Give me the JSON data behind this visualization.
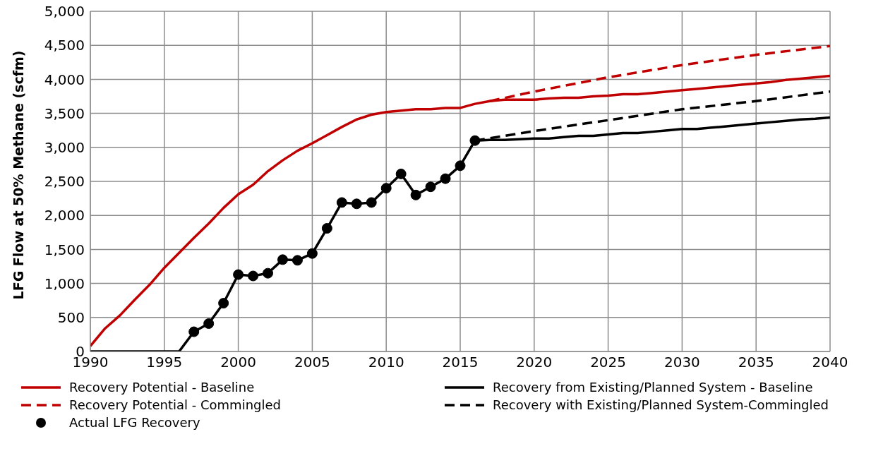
{
  "chart_data": {
    "type": "line",
    "ylabel": "LFG Flow at 50% Methane (scfm)",
    "xlim": [
      1990,
      2040
    ],
    "xticks": [
      1990,
      1995,
      2000,
      2005,
      2010,
      2015,
      2020,
      2025,
      2030,
      2035,
      2040
    ],
    "ylim": [
      0,
      5000
    ],
    "yticks": [
      {
        "value": 0,
        "label": "0"
      },
      {
        "value": 500,
        "label": "500"
      },
      {
        "value": 1000,
        "label": "1,000"
      },
      {
        "value": 1500,
        "label": "1,500"
      },
      {
        "value": 2000,
        "label": "2,000"
      },
      {
        "value": 2500,
        "label": "2,500"
      },
      {
        "value": 3000,
        "label": "3,000"
      },
      {
        "value": 3500,
        "label": "3,500"
      },
      {
        "value": 4000,
        "label": "4,000"
      },
      {
        "value": 4500,
        "label": "4,500"
      },
      {
        "value": 5000,
        "label": "5,000"
      }
    ],
    "grid": true,
    "legend": "bottom",
    "series": [
      {
        "name": "Recovery Potential - Baseline",
        "color": "#c00000",
        "line_style": "solid",
        "marker": "none",
        "x": [
          1990,
          1991,
          1992,
          1993,
          1994,
          1995,
          1996,
          1997,
          1998,
          1999,
          2000,
          2001,
          2002,
          2003,
          2004,
          2005,
          2006,
          2007,
          2008,
          2009,
          2010,
          2011,
          2012,
          2013,
          2014,
          2015,
          2016,
          2017,
          2018,
          2019,
          2020,
          2021,
          2022,
          2023,
          2024,
          2025,
          2026,
          2027,
          2028,
          2029,
          2030,
          2031,
          2032,
          2033,
          2034,
          2035,
          2036,
          2037,
          2038,
          2039,
          2040
        ],
        "values": [
          80,
          340,
          530,
          760,
          980,
          1230,
          1450,
          1670,
          1880,
          2110,
          2310,
          2450,
          2650,
          2810,
          2950,
          3060,
          3180,
          3300,
          3410,
          3480,
          3520,
          3540,
          3560,
          3560,
          3580,
          3580,
          3640,
          3680,
          3700,
          3700,
          3700,
          3720,
          3730,
          3730,
          3750,
          3760,
          3780,
          3780,
          3800,
          3820,
          3840,
          3860,
          3880,
          3900,
          3920,
          3940,
          3960,
          3990,
          4010,
          4030,
          4050
        ]
      },
      {
        "name": "Recovery from Existing/Planned System - Baseline",
        "color": "#000000",
        "line_style": "solid",
        "marker": "none",
        "x": [
          1990,
          1996,
          1997,
          1998,
          1999,
          2000,
          2001,
          2002,
          2003,
          2004,
          2005,
          2006,
          2007,
          2008,
          2009,
          2010,
          2011,
          2012,
          2013,
          2014,
          2015,
          2016,
          2017,
          2018,
          2019,
          2020,
          2021,
          2022,
          2023,
          2024,
          2025,
          2026,
          2027,
          2028,
          2029,
          2030,
          2031,
          2032,
          2033,
          2034,
          2035,
          2036,
          2037,
          2038,
          2039,
          2040
        ],
        "values": [
          0,
          0,
          290,
          410,
          710,
          1130,
          1110,
          1150,
          1350,
          1340,
          1440,
          1810,
          2190,
          2170,
          2190,
          2400,
          2610,
          2300,
          2420,
          2540,
          2730,
          3100,
          3110,
          3110,
          3120,
          3130,
          3130,
          3150,
          3170,
          3170,
          3190,
          3210,
          3210,
          3230,
          3250,
          3270,
          3270,
          3290,
          3310,
          3330,
          3350,
          3370,
          3390,
          3410,
          3420,
          3440
        ]
      },
      {
        "name": "Recovery Potential - Commingled",
        "color": "#c00000",
        "line_style": "dashed",
        "marker": "none",
        "x": [
          2017,
          2020,
          2025,
          2030,
          2035,
          2040
        ],
        "values": [
          3680,
          3820,
          4030,
          4210,
          4360,
          4490
        ]
      },
      {
        "name": "Recovery with Existing/Planned System-Commingled",
        "color": "#000000",
        "line_style": "dashed",
        "marker": "none",
        "x": [
          2016,
          2020,
          2025,
          2030,
          2035,
          2040
        ],
        "values": [
          3100,
          3240,
          3400,
          3560,
          3680,
          3820
        ]
      },
      {
        "name": "Actual LFG Recovery",
        "type": "scatter",
        "color": "#000000",
        "marker": "circle",
        "x": [
          1997,
          1998,
          1999,
          2000,
          2001,
          2002,
          2003,
          2004,
          2005,
          2006,
          2007,
          2008,
          2009,
          2010,
          2011,
          2012,
          2013,
          2014,
          2015,
          2016
        ],
        "values": [
          290,
          410,
          710,
          1130,
          1110,
          1150,
          1350,
          1340,
          1440,
          1810,
          2190,
          2170,
          2190,
          2400,
          2610,
          2300,
          2420,
          2540,
          2730,
          3100
        ]
      }
    ]
  }
}
